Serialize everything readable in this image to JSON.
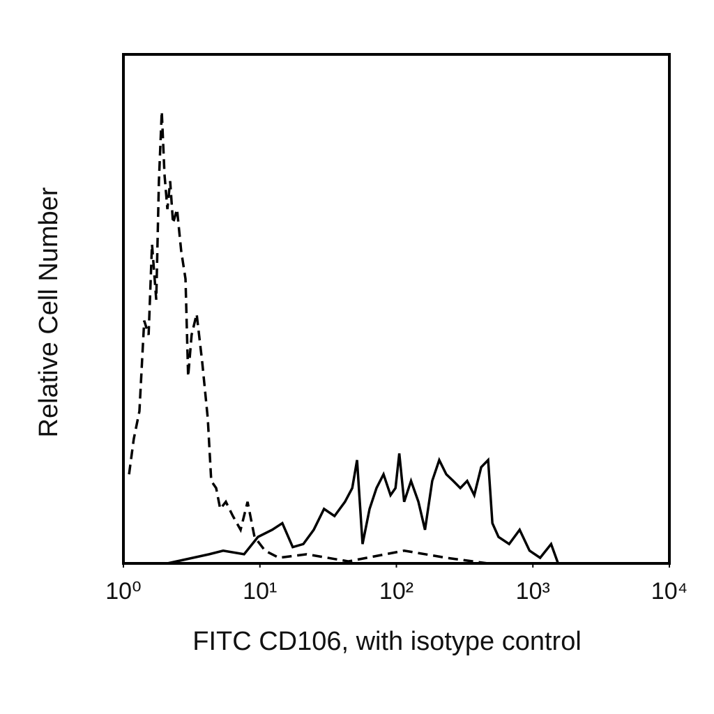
{
  "chart_data": {
    "type": "line",
    "x_label": "FITC CD106, with isotype control",
    "y_label": "Relative Cell Number",
    "xscale": "log",
    "xlim": [
      1,
      10000
    ],
    "xticks": [
      {
        "value": 1,
        "label": "10⁰"
      },
      {
        "value": 10,
        "label": "10¹"
      },
      {
        "value": 100,
        "label": "10²"
      },
      {
        "value": 1000,
        "label": "10³"
      },
      {
        "value": 10000,
        "label": "10⁴"
      }
    ],
    "ylim": [
      0,
      100
    ],
    "series": [
      {
        "color": "#000000",
        "dash": true,
        "x": [
          1.1,
          1.19,
          1.31,
          1.42,
          1.53,
          1.62,
          1.74,
          1.82,
          1.91,
          2.0,
          2.1,
          2.2,
          2.31,
          2.47,
          2.65,
          2.85,
          2.98,
          3.16,
          3.44,
          3.78,
          4.15,
          4.4,
          4.78,
          5.12,
          5.63,
          6.34,
          7.22,
          8.12,
          9.13,
          10.9,
          13.8,
          22.0,
          44.5,
          114,
          232,
          468
        ],
        "values": [
          17.5,
          24.4,
          29.9,
          47.7,
          44.9,
          62.7,
          51.8,
          75.1,
          88.8,
          76.4,
          69.6,
          75.1,
          66.8,
          69.6,
          61.4,
          55.9,
          36.7,
          44.9,
          49.0,
          39.5,
          28.5,
          16.2,
          14.8,
          10.7,
          12.1,
          9.3,
          6.6,
          12.1,
          5.2,
          2.5,
          1.1,
          1.8,
          0.4,
          2.5,
          1.1,
          0
        ]
      },
      {
        "color": "#000000",
        "dash": false,
        "x": [
          2.1,
          4.25,
          5.38,
          7.66,
          9.68,
          12.3,
          14.6,
          17.4,
          20.8,
          24.8,
          29.5,
          35.2,
          42.0,
          47.5,
          51.5,
          56.5,
          63.6,
          71.5,
          80.5,
          90.6,
          98.5,
          105,
          114,
          128,
          145,
          162,
          183,
          206,
          232,
          261,
          294,
          330,
          372,
          418,
          470,
          505,
          560,
          670,
          800,
          945,
          1130,
          1360,
          1530
        ],
        "values": [
          0,
          1.8,
          2.5,
          1.8,
          5.2,
          6.6,
          7.9,
          3.2,
          3.8,
          6.6,
          10.7,
          9.3,
          12.1,
          14.8,
          20.3,
          3.8,
          10.7,
          14.8,
          17.5,
          13.4,
          14.8,
          21.6,
          12.1,
          16.2,
          12.1,
          6.6,
          16.2,
          20.3,
          17.5,
          16.2,
          14.8,
          16.2,
          13.4,
          18.9,
          20.3,
          7.9,
          5.2,
          3.8,
          6.6,
          2.5,
          1.1,
          3.8,
          0
        ]
      }
    ]
  }
}
